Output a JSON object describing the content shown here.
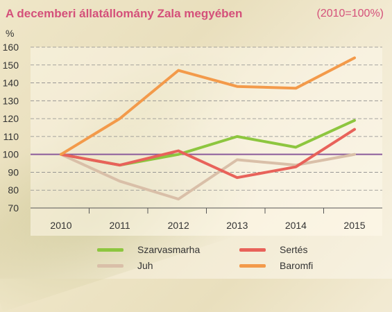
{
  "header": {
    "title": "A decemberi állatállomány Zala megyében",
    "base_note": "(2010=100%)"
  },
  "chart_data": {
    "type": "line",
    "ylabel": "%",
    "ylim": [
      70,
      160
    ],
    "yticks": [
      70,
      80,
      90,
      100,
      110,
      120,
      130,
      140,
      150,
      160
    ],
    "categories": [
      "2010",
      "2011",
      "2012",
      "2013",
      "2014",
      "2015"
    ],
    "reference_line": 100,
    "grid": "horizontal dashed",
    "series": [
      {
        "name": "Szarvasmarha",
        "color": "#8dc63f",
        "values": [
          100,
          94,
          100,
          110,
          104,
          119
        ]
      },
      {
        "name": "Juh",
        "color": "#d9bfa8",
        "values": [
          100,
          85,
          75,
          97,
          94,
          100
        ]
      },
      {
        "name": "Sertés",
        "color": "#e8625a",
        "values": [
          100,
          94,
          102,
          87,
          93,
          114
        ]
      },
      {
        "name": "Baromfi",
        "color": "#f39a4a",
        "values": [
          100,
          120,
          147,
          138,
          137,
          154
        ]
      }
    ]
  },
  "legend": [
    {
      "label": "Szarvasmarha",
      "color": "#8dc63f"
    },
    {
      "label": "Sertés",
      "color": "#e8625a"
    },
    {
      "label": "Juh",
      "color": "#d9bfa8"
    },
    {
      "label": "Baromfi",
      "color": "#f39a4a"
    }
  ]
}
